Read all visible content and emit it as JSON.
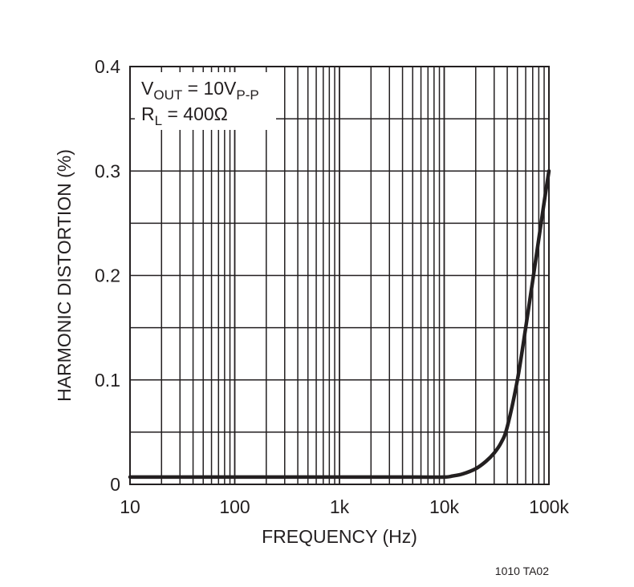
{
  "chart_data": {
    "type": "line",
    "title": "",
    "xlabel": "FREQUENCY (Hz)",
    "ylabel": "HARMONIC DISTORTION (%)",
    "xscale": "log",
    "xlim": [
      10,
      100000
    ],
    "ylim": [
      0,
      0.4
    ],
    "grid": true,
    "x_ticks": [
      {
        "value": 10,
        "label": "10"
      },
      {
        "value": 100,
        "label": "100"
      },
      {
        "value": 1000,
        "label": "1k"
      },
      {
        "value": 10000,
        "label": "10k"
      },
      {
        "value": 100000,
        "label": "100k"
      }
    ],
    "y_ticks": [
      {
        "value": 0,
        "label": "0"
      },
      {
        "value": 0.1,
        "label": "0.1"
      },
      {
        "value": 0.2,
        "label": "0.2"
      },
      {
        "value": 0.3,
        "label": "0.3"
      },
      {
        "value": 0.4,
        "label": "0.4"
      }
    ],
    "legend": {
      "placement": "top-left",
      "lines": [
        {
          "main": "V",
          "sub": "OUT",
          "rest": " = 10V",
          "sub2": "P-P"
        },
        {
          "main": "R",
          "sub": "L",
          "rest": " = 400Ω",
          "sub2": ""
        }
      ]
    },
    "series": [
      {
        "x": [
          10,
          100,
          1000,
          5000,
          10000,
          12000,
          15000,
          20000,
          25000,
          30000,
          35000,
          40000,
          50000,
          60000,
          70000,
          80000,
          90000,
          100000
        ],
        "y": [
          0.007,
          0.007,
          0.007,
          0.007,
          0.007,
          0.008,
          0.01,
          0.015,
          0.022,
          0.03,
          0.04,
          0.055,
          0.1,
          0.15,
          0.195,
          0.235,
          0.27,
          0.3
        ],
        "color": "#231f20"
      }
    ]
  },
  "figure_id": "1010 TA02"
}
